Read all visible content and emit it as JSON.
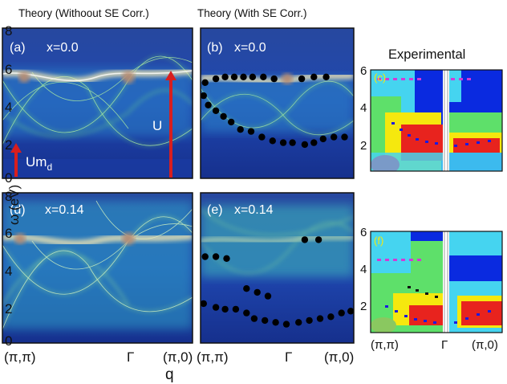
{
  "headers": {
    "theory_without": "Theory (Withoout SE Corr.)",
    "theory_with": "Theory (With SE Corr.)",
    "experimental": "Experimental"
  },
  "axes": {
    "ylabel": "ω (eV)",
    "xlabel": "q",
    "x_ticks": [
      "(π,π)",
      "Γ",
      "(π,0)"
    ],
    "y_ticks_theory": [
      "0",
      "2",
      "4",
      "6",
      "8"
    ],
    "y_ticks_exp": [
      "2",
      "4",
      "6"
    ]
  },
  "colors": {
    "background_band": "#1d3ea8",
    "dispersion": "#8fe07a",
    "flat_band": "#f2e6b4",
    "arrow": "#d81e1e",
    "dots": "#000000",
    "exp_red": "#e8231e",
    "exp_yellow": "#f5e80e",
    "exp_green": "#5ee06a",
    "exp_cyan": "#45d4f0",
    "exp_blue": "#0a2ae0",
    "exp_magenta": "#d23ad6"
  },
  "panels": {
    "a": {
      "tag": "(a)",
      "doping": "x=0.0"
    },
    "b": {
      "tag": "(b)",
      "doping": "x=0.0"
    },
    "c": {
      "tag": "(c)"
    },
    "d": {
      "tag": "(d)",
      "doping": "x=0.14"
    },
    "e": {
      "tag": "(e)",
      "doping": "x=0.14"
    },
    "f": {
      "tag": "(f)"
    }
  },
  "annotations": {
    "umd_main": "Um",
    "umd_sub": "d",
    "u": "U"
  },
  "chart_data": [
    {
      "type": "scatter",
      "panel": "(b)",
      "title": "Theory (With SE Corr.) x=0.0",
      "xlabel": "q",
      "ylabel": "ω (eV)",
      "ylim": [
        0,
        8
      ],
      "x_ticks": [
        "(π,π)",
        "Γ",
        "(π,0)"
      ],
      "series": [
        {
          "x": [
            0.02,
            0.05,
            0.1,
            0.15,
            0.2,
            0.26,
            0.33,
            0.4,
            0.47,
            0.54,
            0.6,
            0.68,
            0.74,
            0.8,
            0.87,
            0.94
          ],
          "y": [
            4.4,
            3.9,
            3.6,
            3.3,
            3.0,
            2.6,
            2.5,
            2.2,
            2.0,
            1.9,
            1.9,
            1.8,
            1.9,
            2.1,
            2.2,
            2.2
          ]
        },
        {
          "x": [
            0.03,
            0.1,
            0.16,
            0.22,
            0.28,
            0.34,
            0.41,
            0.48,
            0.66,
            0.74,
            0.82
          ],
          "y": [
            5.1,
            5.3,
            5.4,
            5.4,
            5.4,
            5.4,
            5.4,
            5.3,
            5.3,
            5.4,
            5.4
          ]
        }
      ]
    },
    {
      "type": "scatter",
      "panel": "(e)",
      "title": "Theory (With SE Corr.) x=0.14",
      "xlabel": "q",
      "ylabel": "ω (eV)",
      "ylim": [
        0,
        8
      ],
      "x_ticks": [
        "(π,π)",
        "Γ",
        "(π,0)"
      ],
      "series": [
        {
          "x": [
            0.02,
            0.1,
            0.16,
            0.23,
            0.3,
            0.35,
            0.42,
            0.49,
            0.56,
            0.64,
            0.71,
            0.78,
            0.85,
            0.92,
            0.98
          ],
          "y": [
            2.1,
            1.9,
            1.8,
            1.8,
            1.6,
            1.3,
            1.2,
            1.1,
            1.0,
            1.1,
            1.2,
            1.3,
            1.4,
            1.6,
            1.7
          ]
        },
        {
          "x": [
            0.03,
            0.1,
            0.17,
            0.3,
            0.37,
            0.44,
            0.68,
            0.77
          ],
          "y": [
            4.6,
            4.6,
            4.5,
            2.9,
            2.7,
            2.5,
            5.5,
            5.5
          ]
        }
      ]
    },
    {
      "type": "heatmap",
      "panel": "(c)",
      "title": "Experimental",
      "ylim": [
        0.5,
        6
      ],
      "y_ticks": [
        2,
        4,
        6
      ],
      "x_ticks": [
        "(π,π)",
        "Γ",
        "(π,0)"
      ]
    },
    {
      "type": "heatmap",
      "panel": "(f)",
      "ylim": [
        0.5,
        6
      ],
      "y_ticks": [
        2,
        4,
        6
      ],
      "x_ticks": [
        "(π,π)",
        "Γ",
        "(π,0)"
      ]
    }
  ]
}
